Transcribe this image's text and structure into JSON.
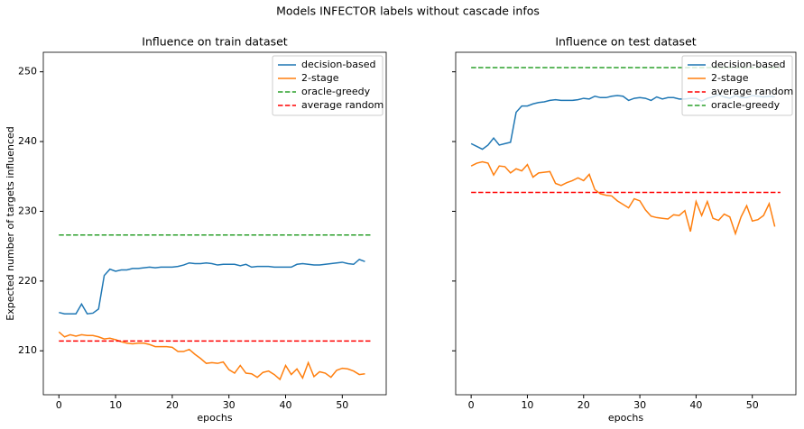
{
  "title": "Models INFECTOR labels without cascade infos",
  "chart_data": [
    {
      "type": "line",
      "title": "Influence on train dataset",
      "xlabel": "epochs",
      "ylabel": "Expected number of targets influenced",
      "x": [
        0,
        1,
        2,
        3,
        4,
        5,
        6,
        7,
        8,
        9,
        10,
        11,
        12,
        13,
        14,
        15,
        16,
        17,
        18,
        19,
        20,
        21,
        22,
        23,
        24,
        25,
        26,
        27,
        28,
        29,
        30,
        31,
        32,
        33,
        34,
        35,
        36,
        37,
        38,
        39,
        40,
        41,
        42,
        43,
        44,
        45,
        46,
        47,
        48,
        49,
        50,
        51,
        52,
        53,
        54
      ],
      "xlim": [
        -2.75,
        57.75
      ],
      "ylim": [
        203.7,
        252.8
      ],
      "xticks": [
        0,
        10,
        20,
        30,
        40,
        50
      ],
      "yticks": [
        210,
        220,
        230,
        240,
        250
      ],
      "legend": "upper right",
      "series": [
        {
          "name": "decision-based",
          "color": "#1f77b4",
          "values": [
            215.5,
            215.3,
            215.3,
            215.3,
            216.7,
            215.3,
            215.4,
            216,
            220.8,
            221.7,
            221.4,
            221.6,
            221.6,
            221.8,
            221.8,
            221.9,
            222,
            221.9,
            222,
            222,
            222,
            222.1,
            222.3,
            222.6,
            222.5,
            222.5,
            222.6,
            222.5,
            222.3,
            222.4,
            222.4,
            222.4,
            222.2,
            222.4,
            222,
            222.1,
            222.1,
            222.1,
            222,
            222,
            222,
            222,
            222.4,
            222.5,
            222.4,
            222.3,
            222.3,
            222.4,
            222.5,
            222.6,
            222.7,
            222.5,
            222.4,
            223.1,
            222.8
          ]
        },
        {
          "name": "2-stage",
          "color": "#ff7f0e",
          "values": [
            212.7,
            212,
            212.3,
            212.1,
            212.3,
            212.2,
            212.2,
            212,
            211.7,
            211.8,
            211.6,
            211.3,
            211.1,
            211,
            211.1,
            211.1,
            210.9,
            210.6,
            210.6,
            210.6,
            210.5,
            209.9,
            209.9,
            210.2,
            209.5,
            208.9,
            208.2,
            208.3,
            208.2,
            208.4,
            207.3,
            206.8,
            207.9,
            206.8,
            206.7,
            206.2,
            206.9,
            207.1,
            206.6,
            205.9,
            207.9,
            206.6,
            207.4,
            206.1,
            208.3,
            206.3,
            207,
            206.8,
            206.2,
            207.2,
            207.5,
            207.4,
            207.1,
            206.6,
            206.7
          ]
        },
        {
          "name": "oracle-greedy",
          "color": "#2ca02c",
          "dashed": true,
          "x": [
            0,
            55
          ],
          "values": [
            226.6,
            226.6
          ]
        },
        {
          "name": "average random",
          "color": "#ff0000",
          "dashed": true,
          "x": [
            0,
            55
          ],
          "values": [
            211.4,
            211.4
          ]
        }
      ]
    },
    {
      "type": "line",
      "title": "Influence on test dataset",
      "xlabel": "epochs",
      "x": [
        0,
        1,
        2,
        3,
        4,
        5,
        6,
        7,
        8,
        9,
        10,
        11,
        12,
        13,
        14,
        15,
        16,
        17,
        18,
        19,
        20,
        21,
        22,
        23,
        24,
        25,
        26,
        27,
        28,
        29,
        30,
        31,
        32,
        33,
        34,
        35,
        36,
        37,
        38,
        39,
        40,
        41,
        42,
        43,
        44,
        45,
        46,
        47,
        48,
        49,
        50,
        51,
        52,
        53,
        54
      ],
      "xlim": [
        -2.75,
        57.75
      ],
      "ylim": [
        203.7,
        252.8
      ],
      "xticks": [
        0,
        10,
        20,
        30,
        40,
        50
      ],
      "legend": "upper right",
      "series": [
        {
          "name": "decision-based",
          "color": "#1f77b4",
          "values": [
            239.7,
            239.3,
            238.9,
            239.5,
            240.5,
            239.5,
            239.7,
            239.9,
            244.2,
            245.1,
            245.1,
            245.4,
            245.6,
            245.7,
            245.9,
            246,
            245.9,
            245.9,
            245.9,
            246,
            246.2,
            246.1,
            246.5,
            246.3,
            246.3,
            246.5,
            246.6,
            246.5,
            245.9,
            246.2,
            246.3,
            246.2,
            245.9,
            246.4,
            246.1,
            246.3,
            246.3,
            246.1,
            246.1,
            246.2,
            246.2,
            245.8,
            246.2,
            246.4,
            246.7,
            246.4,
            246.2,
            246.6,
            246.3,
            246.3,
            246.6,
            246.5,
            246.4,
            246.5,
            246.4
          ]
        },
        {
          "name": "2-stage",
          "color": "#ff7f0e",
          "values": [
            236.5,
            236.9,
            237.1,
            236.9,
            235.2,
            236.5,
            236.4,
            235.5,
            236.1,
            235.8,
            236.7,
            234.9,
            235.5,
            235.6,
            235.7,
            234,
            233.7,
            234.1,
            234.4,
            234.8,
            234.4,
            235.3,
            233.1,
            232.5,
            232.3,
            232.2,
            231.5,
            231,
            230.5,
            231.8,
            231.5,
            230.2,
            229.3,
            229.1,
            229,
            228.9,
            229.5,
            229.4,
            230.1,
            227.1,
            231.4,
            229.4,
            231.4,
            229,
            228.7,
            229.6,
            229.2,
            226.8,
            229.2,
            230.8,
            228.6,
            228.8,
            229.4,
            231.1,
            227.8
          ]
        },
        {
          "name": "average random",
          "color": "#ff0000",
          "dashed": true,
          "x": [
            0,
            55
          ],
          "values": [
            232.7,
            232.7
          ]
        },
        {
          "name": "oracle-greedy",
          "color": "#2ca02c",
          "dashed": true,
          "x": [
            0,
            55
          ],
          "values": [
            250.6,
            250.6
          ]
        }
      ]
    }
  ]
}
